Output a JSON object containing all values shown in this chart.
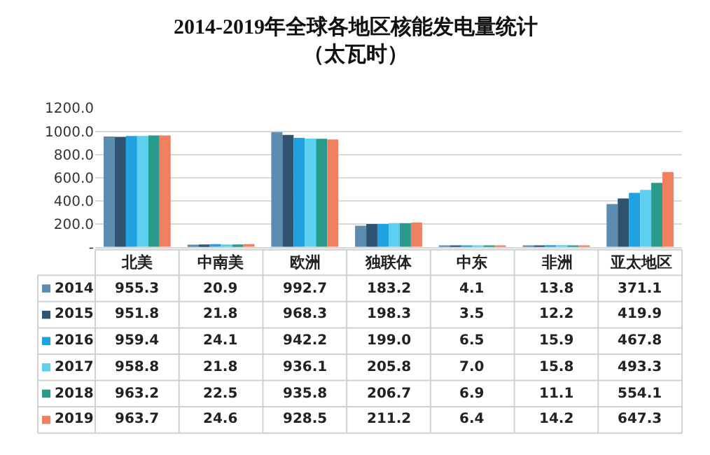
{
  "chart_data": {
    "type": "bar",
    "title": "2014-2019年全球各地区核能发电量统计（太瓦时）",
    "categories": [
      "北美",
      "中南美",
      "欧洲",
      "独联体",
      "中东",
      "非洲",
      "亚太地区"
    ],
    "series": [
      {
        "name": "2014",
        "color": "#5b8db0",
        "values": [
          955.3,
          20.9,
          992.7,
          183.2,
          4.1,
          13.8,
          371.1
        ],
        "value_labels": [
          "955.3",
          "20.9",
          "992.7",
          "183.2",
          "4.1",
          "13.8",
          "371.1"
        ]
      },
      {
        "name": "2015",
        "color": "#2f5370",
        "values": [
          951.8,
          21.8,
          968.3,
          198.3,
          3.5,
          12.2,
          419.9
        ],
        "value_labels": [
          "951.8",
          "21.8",
          "968.3",
          "198.3",
          "3.5",
          "12.2",
          "419.9"
        ]
      },
      {
        "name": "2016",
        "color": "#1fa3e0",
        "values": [
          959.4,
          24.1,
          942.2,
          199.0,
          6.5,
          15.9,
          467.8
        ],
        "value_labels": [
          "959.4",
          "24.1",
          "942.2",
          "199.0",
          "6.5",
          "15.9",
          "467.8"
        ]
      },
      {
        "name": "2017",
        "color": "#5dd0f0",
        "values": [
          958.8,
          21.8,
          936.1,
          205.8,
          7.0,
          15.8,
          493.3
        ],
        "value_labels": [
          "958.8",
          "21.8",
          "936.1",
          "205.8",
          "7.0",
          "15.8",
          "493.3"
        ]
      },
      {
        "name": "2018",
        "color": "#2a9a8a",
        "values": [
          963.2,
          22.5,
          935.8,
          206.7,
          6.9,
          11.1,
          554.1
        ],
        "value_labels": [
          "963.2",
          "22.5",
          "935.8",
          "206.7",
          "6.9",
          "11.1",
          "554.1"
        ]
      },
      {
        "name": "2019",
        "color": "#f08060",
        "values": [
          963.7,
          24.6,
          928.5,
          211.2,
          6.4,
          14.2,
          647.3
        ],
        "value_labels": [
          "963.7",
          "24.6",
          "928.5",
          "211.2",
          "6.4",
          "14.2",
          "647.3"
        ]
      }
    ],
    "ylim": [
      0,
      1200
    ],
    "yticks": [
      {
        "value": 0,
        "label": "-"
      },
      {
        "value": 200,
        "label": "200.0"
      },
      {
        "value": 400,
        "label": "400.0"
      },
      {
        "value": 600,
        "label": "600.0"
      },
      {
        "value": 800,
        "label": "800.0"
      },
      {
        "value": 1000,
        "label": "1000.0"
      },
      {
        "value": 1200,
        "label": "1200.0"
      }
    ],
    "grid": "y",
    "tick_labels": "y",
    "legend": "bottom left"
  }
}
